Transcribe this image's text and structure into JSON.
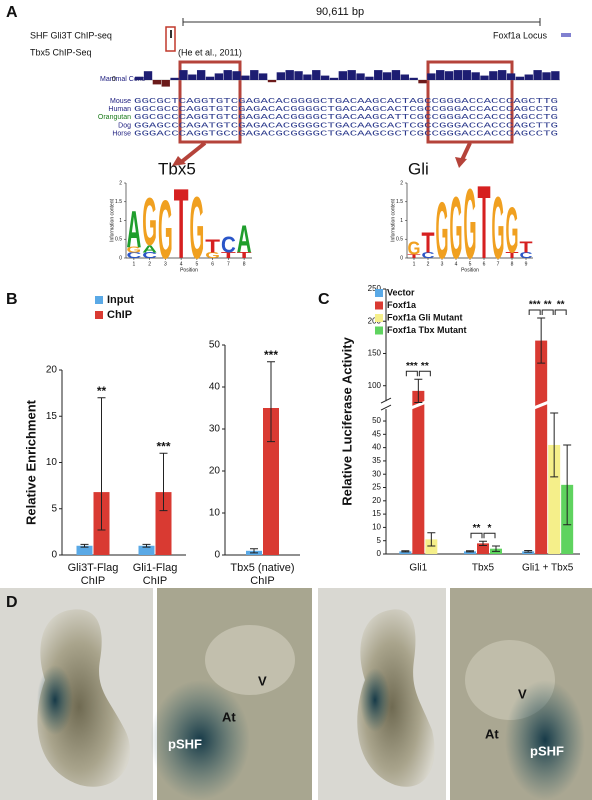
{
  "panel_labels": [
    "A",
    "B",
    "C",
    "D"
  ],
  "panel_a": {
    "scale_label": "90,611 bp",
    "tracks": [
      "SHF Gli3T ChIP-seq",
      "Tbx5 ChIP-Seq"
    ],
    "citation": "(He et al., 2011)",
    "locus": "Foxf1a Locus",
    "conservation": {
      "label": "Mammal Cons",
      "zero": "0",
      "values": [
        0.3,
        0.8,
        -0.4,
        -0.6,
        0.2,
        0.9,
        0.5,
        0.9,
        0.3,
        0.6,
        0.9,
        0.8,
        0.4,
        0.9,
        0.6,
        -0.2,
        0.7,
        0.9,
        0.8,
        0.5,
        0.9,
        0.4,
        0.2,
        0.8,
        0.9,
        0.6,
        0.3,
        0.9,
        0.7,
        0.9,
        0.5,
        0.2,
        -0.3,
        0.6,
        0.9,
        0.8,
        0.9,
        0.9,
        0.7,
        0.4,
        0.8,
        0.9,
        0.6,
        0.3,
        0.5,
        0.9,
        0.7,
        0.8
      ]
    },
    "alignment": [
      {
        "species": "Mouse",
        "sequence": "GGCGCTCAGGTGTCGAGACACGGGGCTGACAAGCACTAGCCGGGACCACCCAGCTTG"
      },
      {
        "species": "Human",
        "sequence": "GGCGCCCAGGTGTCGAGACACGGGGCTGACAAGCACTCGCCGGGACCACCCAGCCTG"
      },
      {
        "species": "Orangutan",
        "sequence": "GGCGCCCAGGTGTCGAGACACGGGGCTGACAAGCATTCGCCGGGACCACCCAGCCTG"
      },
      {
        "species": "Dog",
        "sequence": "GGAGCCCAGATGTCGAGACACGGGGCTGACAAGCACTCGCCGGGACCACCCAGCTTG"
      },
      {
        "species": "Horse",
        "sequence": "GGGACCCAGGTGCCGAGACGCGGGGCTGACAAGCGCTCGCCGGGACCACCCAGCCTG"
      }
    ],
    "logos": [
      {
        "title": "Tbx5",
        "y_label": "Information content",
        "x_label": "Position",
        "ylim": [
          0,
          2
        ],
        "yticks": [
          0,
          0.5,
          1,
          1.5,
          2
        ],
        "positions": [
          1,
          2,
          3,
          4,
          5,
          6,
          7,
          8
        ],
        "columns": [
          [
            [
              "C",
              0.15
            ],
            [
              "G",
              0.15
            ],
            [
              "A",
              1.0
            ]
          ],
          [
            [
              "C",
              0.15
            ],
            [
              "A",
              0.2
            ],
            [
              "G",
              1.3
            ]
          ],
          [
            [
              "G",
              1.6
            ]
          ],
          [
            [
              "T",
              1.9
            ]
          ],
          [
            [
              "G",
              1.7
            ]
          ],
          [
            [
              "G",
              0.15
            ],
            [
              "T",
              0.35
            ]
          ],
          [
            [
              "T",
              0.15
            ],
            [
              "C",
              0.45
            ]
          ],
          [
            [
              "T",
              0.15
            ],
            [
              "A",
              0.75
            ]
          ]
        ]
      },
      {
        "title": "Gli",
        "y_label": "Information content",
        "x_label": "Position",
        "ylim": [
          0,
          2
        ],
        "yticks": [
          0,
          0.5,
          1,
          1.5,
          2
        ],
        "positions": [
          1,
          2,
          3,
          4,
          5,
          6,
          7,
          8,
          9
        ],
        "columns": [
          [
            [
              "T",
              0.1
            ],
            [
              "G",
              0.35
            ]
          ],
          [
            [
              "C",
              0.15
            ],
            [
              "T",
              0.55
            ]
          ],
          [
            [
              "G",
              1.55
            ]
          ],
          [
            [
              "G",
              1.7
            ]
          ],
          [
            [
              "G",
              1.9
            ]
          ],
          [
            [
              "T",
              2.0
            ]
          ],
          [
            [
              "G",
              1.7
            ]
          ],
          [
            [
              "T",
              0.15
            ],
            [
              "G",
              1.25
            ]
          ],
          [
            [
              "C",
              0.15
            ],
            [
              "T",
              0.3
            ]
          ]
        ]
      }
    ]
  },
  "chart_data": [
    {
      "type": "bar",
      "y_label": "Relative Enrichment",
      "categories": [
        [
          "Gli3T-Flag",
          "ChIP"
        ],
        [
          "Gli1-Flag",
          "ChIP"
        ]
      ],
      "ylim": [
        0,
        20
      ],
      "yticks": [
        0,
        5,
        10,
        15,
        20
      ],
      "legend": "top-left",
      "series": [
        {
          "name": "Input",
          "color": "#5aa9e6",
          "values": [
            1,
            1
          ],
          "errors": [
            [
              0.15,
              0.15
            ],
            [
              0.15,
              0.15
            ]
          ]
        },
        {
          "name": "ChIP",
          "color": "#d93a32",
          "values": [
            6.8,
            6.8
          ],
          "errors": [
            [
              4.1,
              10.2
            ],
            [
              2,
              4.2
            ]
          ],
          "value_annotations": [
            "**",
            "***"
          ]
        }
      ]
    },
    {
      "type": "bar",
      "categories": [
        [
          "Tbx5 (native)",
          "ChIP"
        ]
      ],
      "ylim": [
        0,
        50
      ],
      "yticks": [
        0,
        10,
        20,
        30,
        40,
        50
      ],
      "series": [
        {
          "color": "#5aa9e6",
          "values": [
            1
          ],
          "errors": [
            [
              0.5,
              0.5
            ]
          ]
        },
        {
          "color": "#d93a32",
          "values": [
            35
          ],
          "errors": [
            [
              8,
              11
            ]
          ],
          "value_annotations": [
            "***"
          ]
        }
      ]
    },
    {
      "type": "bar",
      "y_label": "Relative Luciferase Activity",
      "categories": [
        "Gli1",
        "Tbx5",
        "Gli1 + Tbx5"
      ],
      "ylim_segments": [
        [
          0,
          56
        ],
        [
          70,
          250
        ]
      ],
      "yticks": [
        0,
        5,
        10,
        15,
        20,
        25,
        30,
        35,
        40,
        45,
        50,
        100,
        150,
        200,
        250
      ],
      "legend": "top-left",
      "series": [
        {
          "name": "Vector",
          "color": "#5aa9e6",
          "values": [
            1,
            1,
            1
          ],
          "errors": [
            [
              0.2,
              0.2
            ],
            [
              0.2,
              0.2
            ],
            [
              0.3,
              0.3
            ]
          ]
        },
        {
          "name": "Foxf1a",
          "color": "#d93a32",
          "values": [
            92,
            4,
            170
          ],
          "errors": [
            [
              18,
              18
            ],
            [
              0.8,
              0.8
            ],
            [
              35,
              35
            ]
          ]
        },
        {
          "name": "Foxf1a Gli Mutant",
          "color": "#f5ef8a",
          "values": [
            5.5,
            null,
            41
          ],
          "errors": [
            [
              2.5,
              2.5
            ],
            null,
            [
              12,
              12
            ]
          ]
        },
        {
          "name": "Foxf1a Tbx Mutant",
          "color": "#5fd35f",
          "values": [
            null,
            2,
            26
          ],
          "errors": [
            null,
            [
              1,
              1
            ],
            [
              15,
              15
            ]
          ]
        }
      ],
      "significance": [
        [
          "***",
          "**"
        ],
        [
          "**",
          "*"
        ],
        [
          "***",
          "**",
          "**"
        ]
      ]
    }
  ],
  "panel_d": {
    "labels": [
      [
        "V",
        "At",
        "pSHF"
      ],
      [
        "V",
        "At",
        "pSHF"
      ]
    ]
  }
}
